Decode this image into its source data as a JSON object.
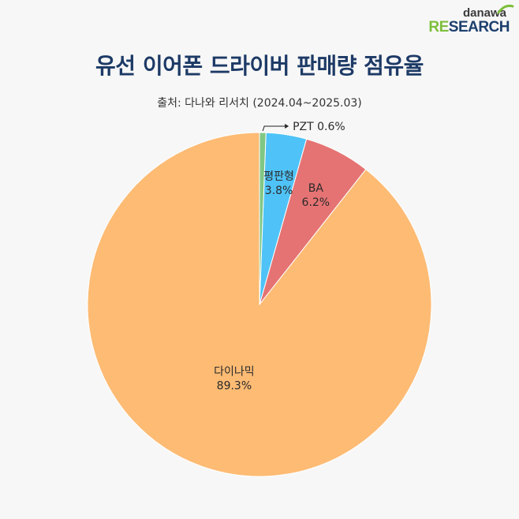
{
  "logo": {
    "top": "danawa",
    "bottom_accent": "RE",
    "bottom_rest": "SEARCH"
  },
  "title": "유선 이어폰 드라이버 판매량 점유율",
  "subtitle": "출처: 다나와 리서치 (2024.04~2025.03)",
  "colors": {
    "background": "#f7f7f7",
    "title": "#1d3a66",
    "logo_blue": "#1c3f6e",
    "logo_green": "#7cbf3a"
  },
  "chart_data": {
    "type": "pie",
    "title": "유선 이어폰 드라이버 판매량 점유율",
    "start_angle_deg": 0,
    "direction": "counterclockwise",
    "slices": [
      {
        "label": "다이나믹",
        "value": 89.3,
        "value_label": "89.3%",
        "color": "#fdbb74"
      },
      {
        "label": "BA",
        "value": 6.2,
        "value_label": "6.2%",
        "color": "#e57373"
      },
      {
        "label": "평판형",
        "value": 3.8,
        "value_label": "3.8%",
        "color": "#4fc3f7"
      },
      {
        "label": "PZT",
        "value": 0.6,
        "value_label": "0.6%",
        "color": "#81c784"
      }
    ]
  }
}
